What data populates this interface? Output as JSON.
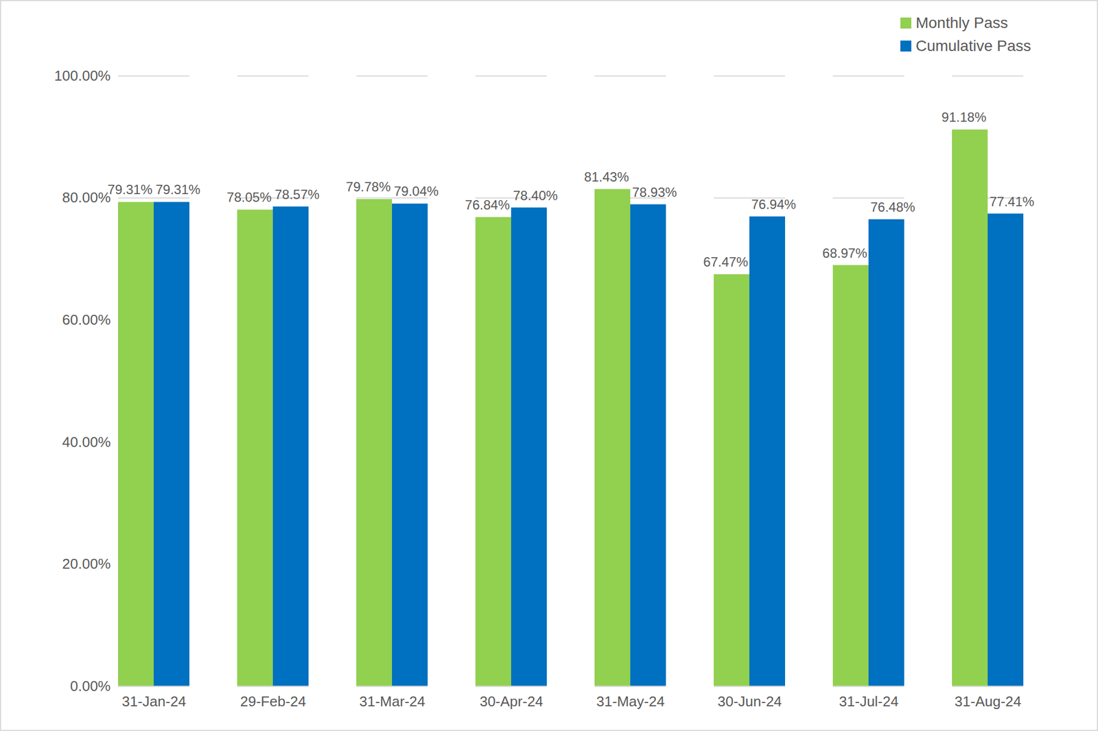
{
  "chart_data": {
    "type": "bar",
    "categories": [
      "31-Jan-24",
      "29-Feb-24",
      "31-Mar-24",
      "30-Apr-24",
      "31-May-24",
      "30-Jun-24",
      "31-Jul-24",
      "31-Aug-24"
    ],
    "series": [
      {
        "name": "Monthly Pass",
        "color": "#92D050",
        "values": [
          79.31,
          78.05,
          79.78,
          76.84,
          81.43,
          67.47,
          68.97,
          91.18
        ],
        "value_labels": [
          "79.31%",
          "78.05%",
          "79.78%",
          "76.84%",
          "81.43%",
          "67.47%",
          "68.97%",
          "91.18%"
        ]
      },
      {
        "name": "Cumulative Pass",
        "color": "#0070C0",
        "values": [
          79.31,
          78.57,
          79.04,
          78.4,
          78.93,
          76.94,
          76.48,
          77.41
        ],
        "value_labels": [
          "79.31%",
          "78.57%",
          "79.04%",
          "78.40%",
          "78.93%",
          "76.94%",
          "76.48%",
          "77.41%"
        ]
      }
    ],
    "ylim": [
      0,
      100
    ],
    "yticks": [
      {
        "value": 0,
        "label": "0.00%"
      },
      {
        "value": 20,
        "label": "20.00%"
      },
      {
        "value": 40,
        "label": "40.00%"
      },
      {
        "value": 60,
        "label": "60.00%"
      },
      {
        "value": 80,
        "label": "80.00%"
      },
      {
        "value": 100,
        "label": "100.00%"
      }
    ],
    "grid": true,
    "legend": "top-right",
    "data_labels": true
  }
}
